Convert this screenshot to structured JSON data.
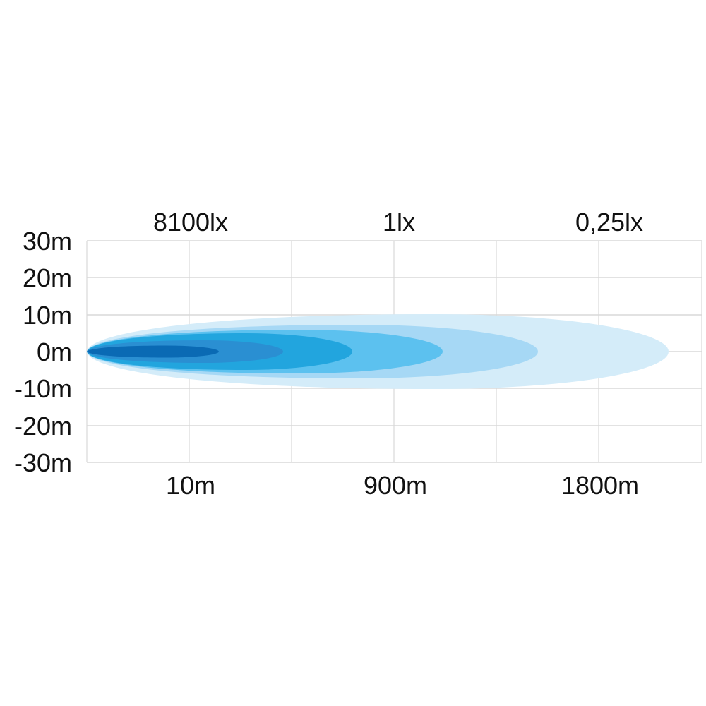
{
  "chart_data": {
    "type": "area",
    "title": "",
    "top_labels": [
      "8100lx",
      "1lx",
      "0,25lx"
    ],
    "y_tick_labels": [
      "30m",
      "20m",
      "10m",
      "0m",
      "-10m",
      "-20m",
      "-30m"
    ],
    "x_tick_labels": [
      "10m",
      "900m",
      "1800m"
    ],
    "ylim": [
      -30,
      30
    ],
    "grid": true,
    "zones": [
      {
        "color": "#d4ecf9"
      },
      {
        "color": "#a6d8f5"
      },
      {
        "color": "#5cc1ef"
      },
      {
        "color": "#22a5de"
      },
      {
        "color": "#2a8fd2"
      },
      {
        "color": "#0a6ab4"
      }
    ],
    "grid_color": "#d8d8d8"
  }
}
